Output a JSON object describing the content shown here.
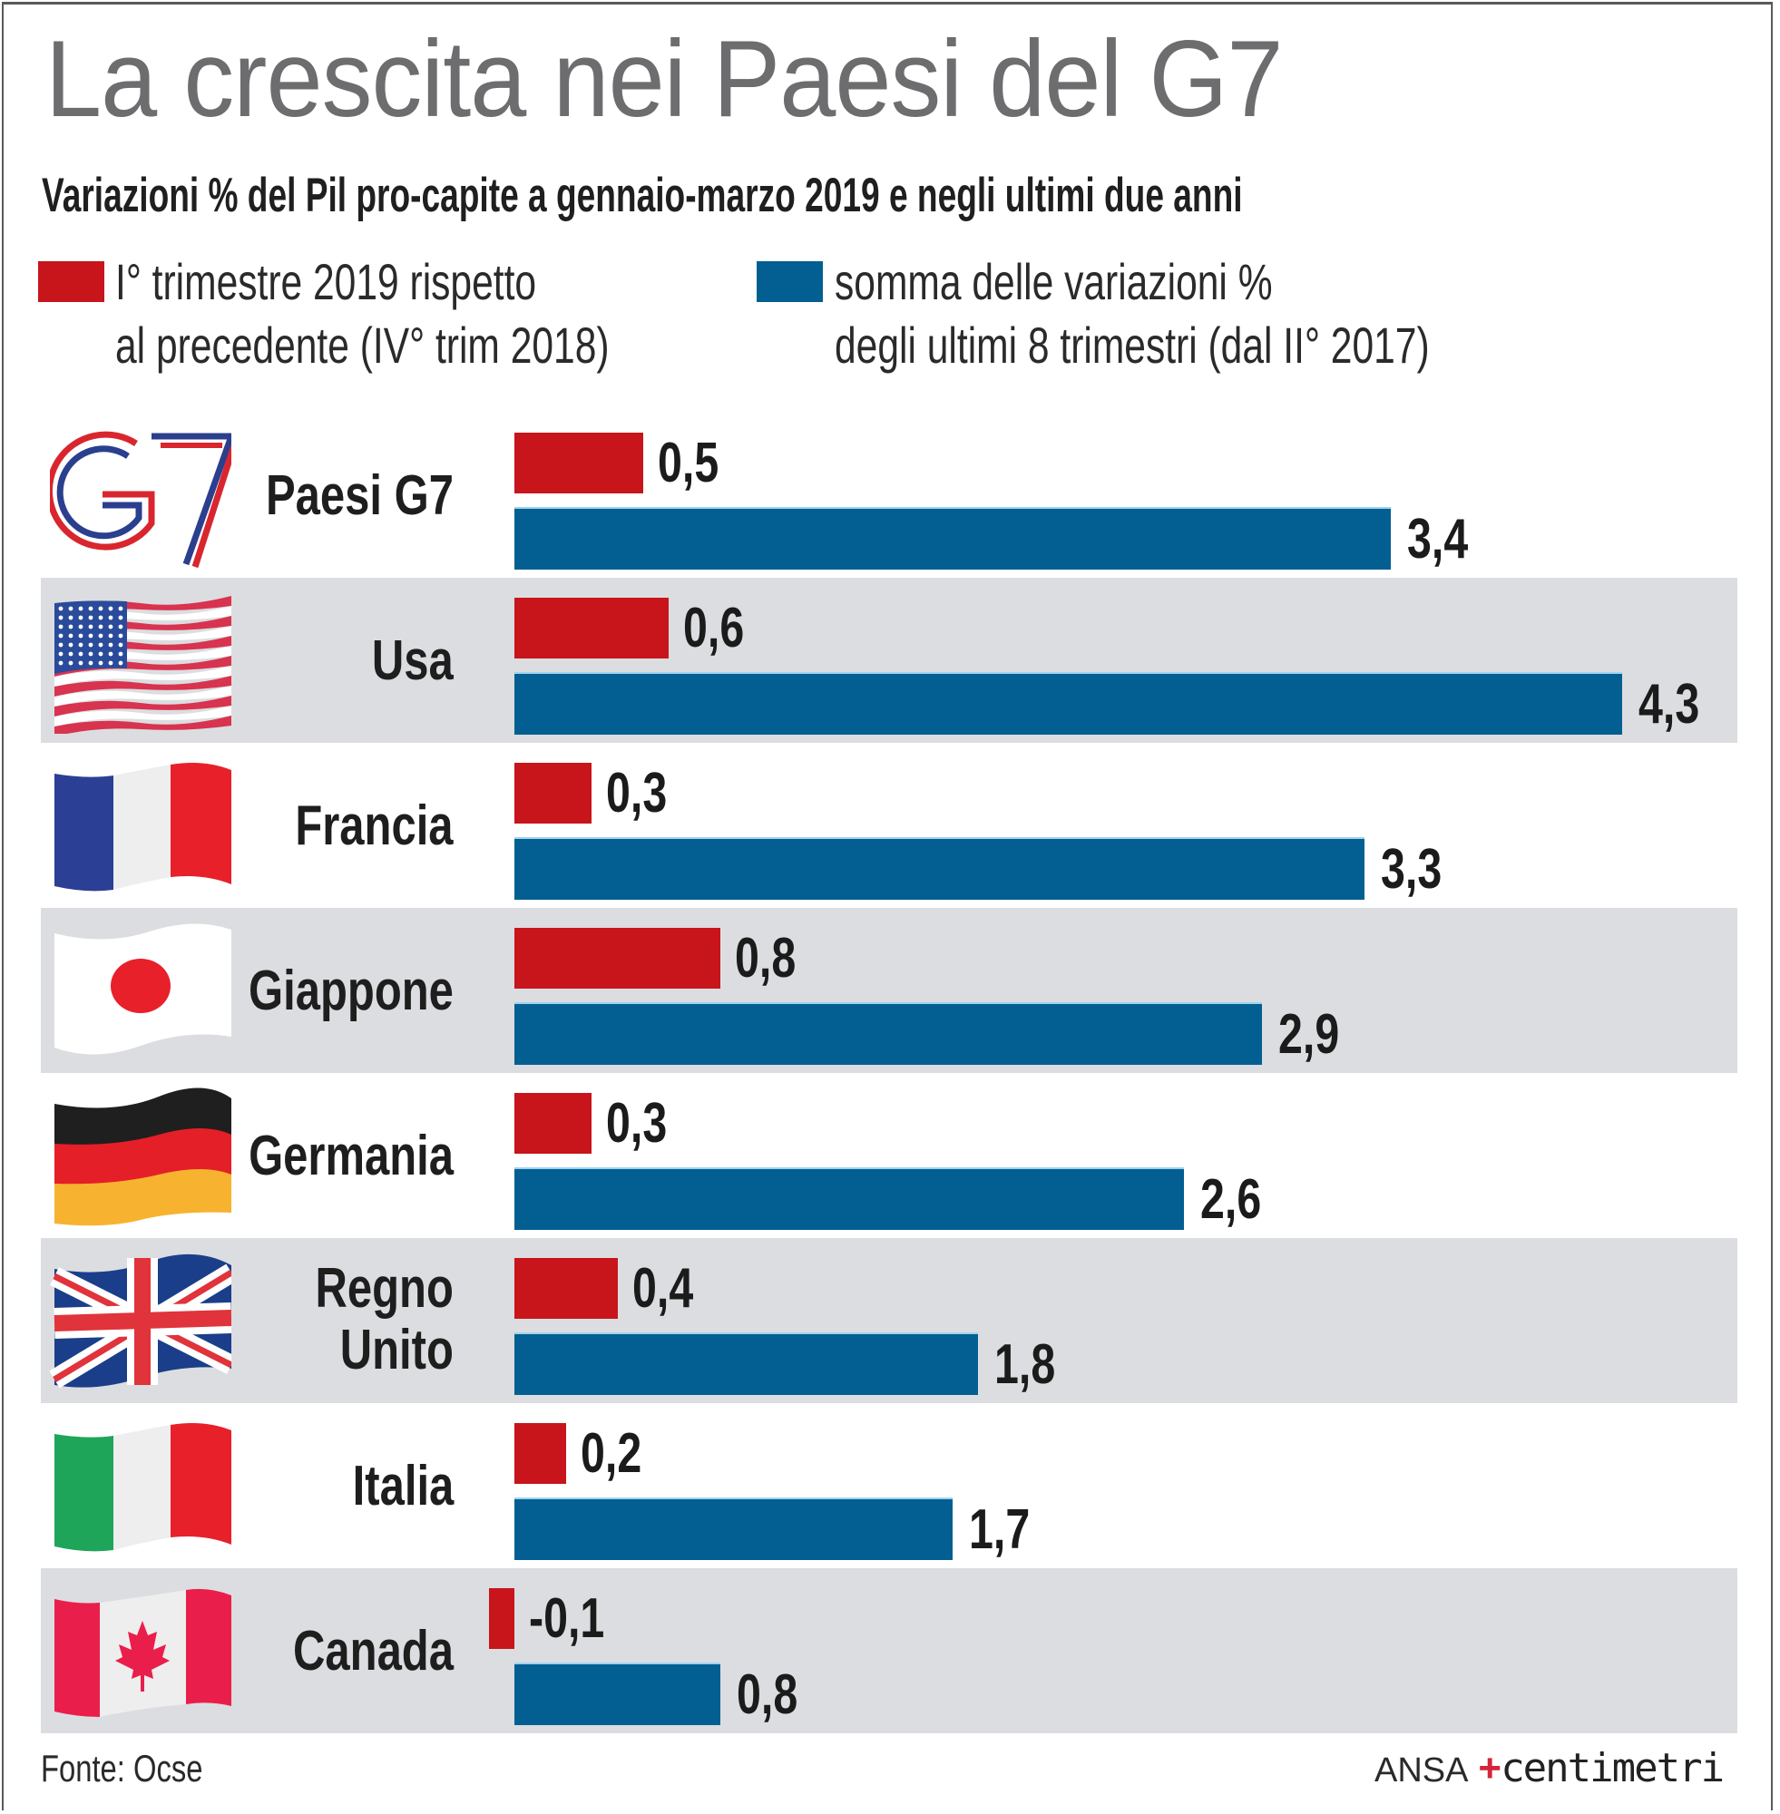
{
  "header": {
    "title": "La crescita nei Paesi del G7",
    "subtitle": "Variazioni % del Pil pro-capite a gennaio-marzo 2019 e negli ultimi due anni"
  },
  "legend": [
    {
      "color": "#c8141b",
      "line1": "I° trimestre 2019 rispetto",
      "line2": "al precedente (IV° trim 2018)"
    },
    {
      "color": "#035f91",
      "line1": "somma delle variazioni %",
      "line2": "degli ultimi 8 trimestri (dal II° 2017)"
    }
  ],
  "chart_data": {
    "type": "bar",
    "orientation": "horizontal",
    "title": "La crescita nei Paesi del G7",
    "subtitle": "Variazioni % del Pil pro-capite a gennaio-marzo 2019 e negli ultimi due anni",
    "categories": [
      "Paesi G7",
      "Usa",
      "Francia",
      "Giappone",
      "Germania",
      "Regno Unito",
      "Italia",
      "Canada"
    ],
    "series": [
      {
        "name": "I° trimestre 2019 rispetto al precedente (IV° trim 2018)",
        "color": "#c8141b",
        "values": [
          0.5,
          0.6,
          0.3,
          0.8,
          0.3,
          0.4,
          0.2,
          -0.1
        ],
        "labels": [
          "0,5",
          "0,6",
          "0,3",
          "0,8",
          "0,3",
          "0,4",
          "0,2",
          "-0,1"
        ]
      },
      {
        "name": "somma delle variazioni % degli ultimi 8 trimestri (dal II° 2017)",
        "color": "#035f91",
        "values": [
          3.4,
          4.3,
          3.3,
          2.9,
          2.6,
          1.8,
          1.7,
          0.8
        ],
        "labels": [
          "3,4",
          "4,3",
          "3,3",
          "2,9",
          "2,6",
          "1,8",
          "1,7",
          "0,8"
        ]
      }
    ],
    "xlabel": "",
    "ylabel": "",
    "xlim": [
      -0.1,
      4.3
    ],
    "grid": false,
    "legend": "top"
  },
  "rows": [
    {
      "label": "Paesi G7",
      "icon": "g7-logo-icon"
    },
    {
      "label": "Usa",
      "icon": "usa-flag-icon"
    },
    {
      "label": "Francia",
      "icon": "france-flag-icon"
    },
    {
      "label": "Giappone",
      "icon": "japan-flag-icon"
    },
    {
      "label": "Germania",
      "icon": "germany-flag-icon"
    },
    {
      "label": "Regno\nUnito",
      "icon": "uk-flag-icon"
    },
    {
      "label": "Italia",
      "icon": "italy-flag-icon"
    },
    {
      "label": "Canada",
      "icon": "canada-flag-icon"
    }
  ],
  "footer": {
    "source": "Fonte: Ocse",
    "logo_ansa": "ANSA",
    "logo_centimetri": "centimetri"
  }
}
